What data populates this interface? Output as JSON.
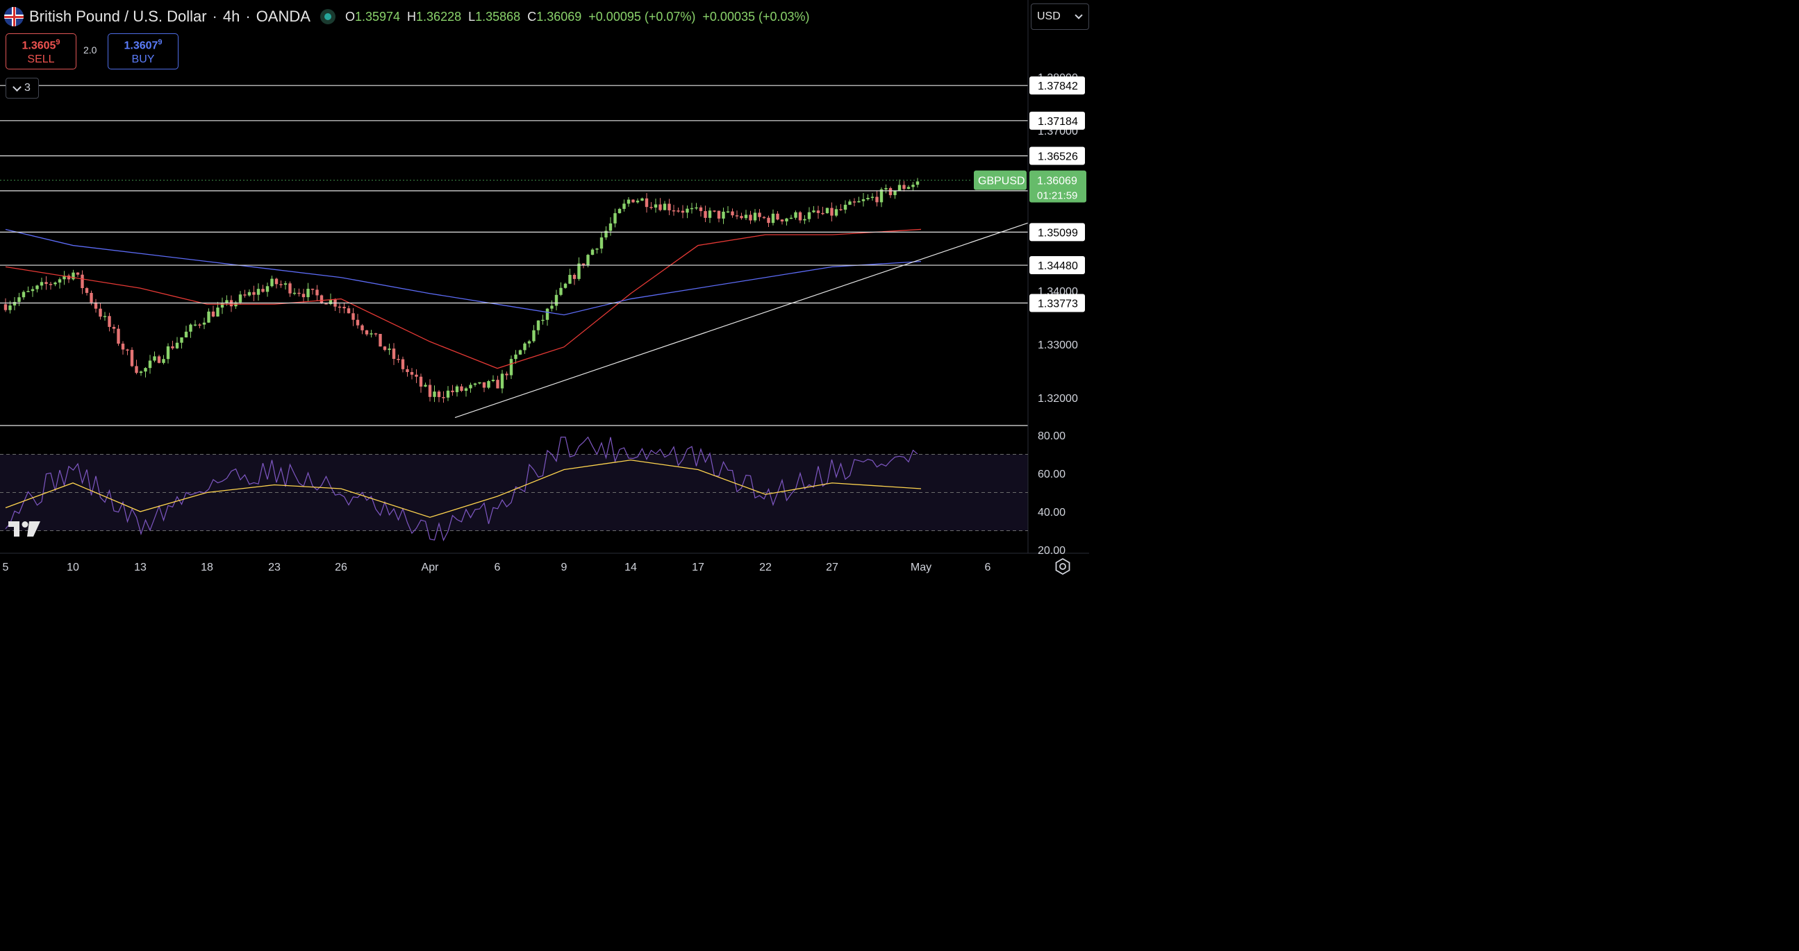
{
  "header": {
    "symbol_title": "British Pound / U.S. Dollar",
    "interval": "4h",
    "broker": "OANDA",
    "sep": "·",
    "ohlc": [
      {
        "label": "O",
        "value": "1.35974"
      },
      {
        "label": "H",
        "value": "1.36228"
      },
      {
        "label": "L",
        "value": "1.35868"
      },
      {
        "label": "C",
        "value": "1.36069"
      }
    ],
    "change": "+0.00095 (+0.07%)",
    "change2": "+0.00035 (+0.03%)"
  },
  "trade": {
    "sell_price_main": "1.3605",
    "sell_price_sup": "9",
    "sell_label": "SELL",
    "spread": "2.0",
    "buy_price_main": "1.3607",
    "buy_price_sup": "9",
    "buy_label": "BUY"
  },
  "indicators_toggle": {
    "count": "3"
  },
  "currency": "USD",
  "colors": {
    "up": "#8ad36b",
    "down": "#e57373",
    "ma_fast": "#e53935",
    "ma_slow": "#5c6bf5",
    "rsi": "#7e57c2",
    "rsi_ma": "#ffd54f",
    "last_price_bg": "#66bb6a"
  },
  "icons": {
    "logo": "tradingview-logo-icon",
    "settings": "settings-icon"
  },
  "chart_data": {
    "type": "candlestick",
    "symbol_label": "GBPUSD",
    "last_price": "1.36069",
    "countdown": "01:21:59",
    "y_ticks": [
      "1.38000",
      "1.37000",
      "1.34000",
      "1.33000",
      "1.32000"
    ],
    "horizontal_levels": [
      "1.37842",
      "1.37184",
      "1.36526",
      "1.35872",
      "1.35099",
      "1.34480",
      "1.33773"
    ],
    "x_ticks": [
      "5",
      "10",
      "13",
      "18",
      "23",
      "26",
      "Apr",
      "6",
      "9",
      "14",
      "17",
      "22",
      "27",
      "May",
      "6"
    ],
    "anchors": [
      {
        "x": "5",
        "price": 1.3375
      },
      {
        "x": "10",
        "price": 1.3435
      },
      {
        "x": "13",
        "price": 1.3245
      },
      {
        "x": "18",
        "price": 1.3355
      },
      {
        "x": "23",
        "price": 1.3415
      },
      {
        "x": "26",
        "price": 1.3375
      },
      {
        "x": "Apr",
        "price": 1.3205
      },
      {
        "x": "6",
        "price": 1.3225
      },
      {
        "x": "9",
        "price": 1.3405
      },
      {
        "x": "14",
        "price": 1.3575
      },
      {
        "x": "17",
        "price": 1.3545
      },
      {
        "x": "22",
        "price": 1.3535
      },
      {
        "x": "27",
        "price": 1.3545
      },
      {
        "x": "May",
        "price": 1.3607
      }
    ],
    "ma_fast_points": [
      {
        "x": "5",
        "price": 1.3445
      },
      {
        "x": "13",
        "price": 1.3405
      },
      {
        "x": "18",
        "price": 1.3375
      },
      {
        "x": "23",
        "price": 1.3375
      },
      {
        "x": "26",
        "price": 1.3385
      },
      {
        "x": "Apr",
        "price": 1.3305
      },
      {
        "x": "6",
        "price": 1.3255
      },
      {
        "x": "9",
        "price": 1.3295
      },
      {
        "x": "14",
        "price": 1.3395
      },
      {
        "x": "17",
        "price": 1.3485
      },
      {
        "x": "22",
        "price": 1.3505
      },
      {
        "x": "27",
        "price": 1.3505
      },
      {
        "x": "May",
        "price": 1.3515
      }
    ],
    "ma_slow_points": [
      {
        "x": "5",
        "price": 1.3515
      },
      {
        "x": "10",
        "price": 1.3485
      },
      {
        "x": "18",
        "price": 1.3455
      },
      {
        "x": "26",
        "price": 1.3425
      },
      {
        "x": "Apr",
        "price": 1.3395
      },
      {
        "x": "9",
        "price": 1.3355
      },
      {
        "x": "14",
        "price": 1.3385
      },
      {
        "x": "22",
        "price": 1.3425
      },
      {
        "x": "27",
        "price": 1.3445
      },
      {
        "x": "May",
        "price": 1.3455
      }
    ],
    "trendline": [
      {
        "x": "Apr",
        "price": 1.3147
      },
      {
        "x": "May",
        "price": 1.3459
      }
    ],
    "rsi": {
      "y_ticks": [
        "80.00",
        "60.00",
        "40.00",
        "20.00"
      ],
      "levels": [
        70,
        50,
        30
      ],
      "range": [
        20,
        80
      ],
      "points": [
        {
          "x": "5",
          "value": 38
        },
        {
          "x": "10",
          "value": 63
        },
        {
          "x": "13",
          "value": 32
        },
        {
          "x": "18",
          "value": 55
        },
        {
          "x": "23",
          "value": 62
        },
        {
          "x": "26",
          "value": 50
        },
        {
          "x": "Apr",
          "value": 28
        },
        {
          "x": "6",
          "value": 42
        },
        {
          "x": "9",
          "value": 76
        },
        {
          "x": "14",
          "value": 72
        },
        {
          "x": "17",
          "value": 68
        },
        {
          "x": "22",
          "value": 48
        },
        {
          "x": "27",
          "value": 62
        },
        {
          "x": "May",
          "value": 69
        }
      ],
      "ma_points": [
        {
          "x": "5",
          "value": 42
        },
        {
          "x": "10",
          "value": 55
        },
        {
          "x": "13",
          "value": 40
        },
        {
          "x": "18",
          "value": 50
        },
        {
          "x": "23",
          "value": 54
        },
        {
          "x": "26",
          "value": 52
        },
        {
          "x": "Apr",
          "value": 37
        },
        {
          "x": "6",
          "value": 48
        },
        {
          "x": "9",
          "value": 62
        },
        {
          "x": "14",
          "value": 67
        },
        {
          "x": "17",
          "value": 62
        },
        {
          "x": "22",
          "value": 49
        },
        {
          "x": "27",
          "value": 55
        },
        {
          "x": "May",
          "value": 52
        }
      ]
    }
  }
}
